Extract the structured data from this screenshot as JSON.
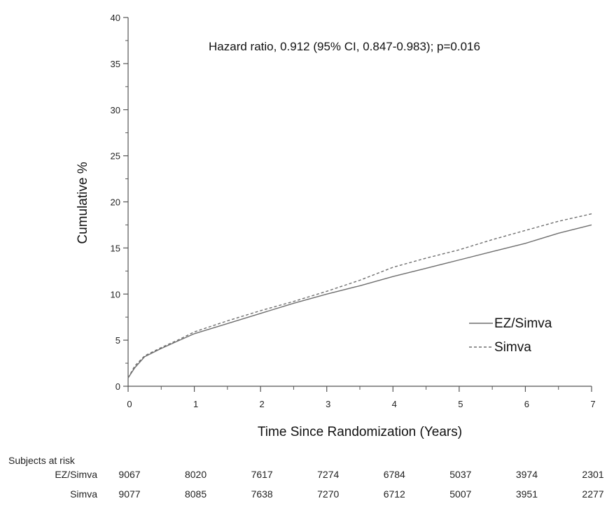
{
  "chart_data": {
    "type": "line",
    "annotation": "Hazard ratio, 0.912 (95% CI, 0.847-0.983); p=0.016",
    "xlabel": "Time Since Randomization (Years)",
    "ylabel": "Cumulative %",
    "xlim": [
      0,
      7
    ],
    "ylim": [
      0,
      40
    ],
    "x_ticks": [
      0,
      1,
      2,
      3,
      4,
      5,
      6,
      7
    ],
    "y_ticks": [
      0,
      5,
      10,
      15,
      20,
      25,
      30,
      35,
      40
    ],
    "grid": false,
    "legend_position": "bottom-right",
    "series": [
      {
        "name": "EZ/Simva",
        "style": "solid",
        "color": "#6e6e6e",
        "points": [
          [
            0,
            0.9
          ],
          [
            0.1,
            2.0
          ],
          [
            0.25,
            3.2
          ],
          [
            0.5,
            4.1
          ],
          [
            0.75,
            4.9
          ],
          [
            1,
            5.7
          ],
          [
            1.5,
            6.8
          ],
          [
            2,
            7.9
          ],
          [
            2.5,
            9.0
          ],
          [
            3,
            10.0
          ],
          [
            3.5,
            10.9
          ],
          [
            4,
            11.9
          ],
          [
            4.5,
            12.8
          ],
          [
            5,
            13.7
          ],
          [
            5.5,
            14.6
          ],
          [
            6,
            15.5
          ],
          [
            6.5,
            16.6
          ],
          [
            7,
            17.5
          ]
        ]
      },
      {
        "name": "Simva",
        "style": "dashed",
        "color": "#6e6e6e",
        "points": [
          [
            0,
            0.9
          ],
          [
            0.1,
            2.2
          ],
          [
            0.25,
            3.3
          ],
          [
            0.5,
            4.2
          ],
          [
            0.75,
            5.0
          ],
          [
            1,
            5.9
          ],
          [
            1.5,
            7.1
          ],
          [
            2,
            8.2
          ],
          [
            2.5,
            9.2
          ],
          [
            3,
            10.3
          ],
          [
            3.5,
            11.5
          ],
          [
            4,
            12.9
          ],
          [
            4.5,
            13.9
          ],
          [
            5,
            14.8
          ],
          [
            5.5,
            15.9
          ],
          [
            6,
            16.9
          ],
          [
            6.5,
            17.9
          ],
          [
            7,
            18.7
          ]
        ]
      }
    ]
  },
  "risk_table": {
    "title": "Subjects at risk",
    "rows": [
      {
        "label": "EZ/Simva",
        "values": [
          "9067",
          "8020",
          "7617",
          "7274",
          "6784",
          "5037",
          "3974",
          "2301"
        ]
      },
      {
        "label": "Simva",
        "values": [
          "9077",
          "8085",
          "7638",
          "7270",
          "6712",
          "5007",
          "3951",
          "2277"
        ]
      }
    ]
  }
}
